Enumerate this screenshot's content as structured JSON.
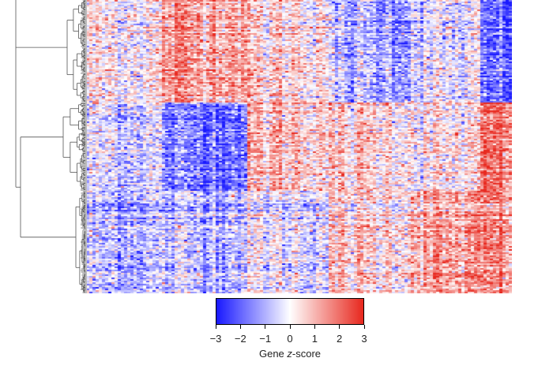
{
  "chart_data": {
    "type": "heatmap",
    "title": "",
    "xlabel": "",
    "ylabel": "",
    "colorbar": {
      "label_prefix": "Gene ",
      "label_italic": "z",
      "label_suffix": "-score",
      "min": -3,
      "max": 3,
      "ticks": [
        -3,
        -2,
        -1,
        0,
        1,
        2,
        3
      ],
      "tick_labels": [
        "−3",
        "−2",
        "−1",
        "0",
        "1",
        "2",
        "3"
      ],
      "colors": {
        "low": "#1a1aff",
        "mid": "#ffffff",
        "high": "#e8291f"
      }
    },
    "row_clusters": [
      {
        "name": "",
        "row_fraction": 0.35
      },
      {
        "name": "",
        "row_fraction": 0.3
      },
      {
        "name": "",
        "row_fraction": 0.35
      }
    ],
    "column_blocks": [
      {
        "width_fraction": 0.175,
        "mean_z": [
          0.2,
          -0.4,
          -0.9
        ]
      },
      {
        "width_fraction": 0.205,
        "mean_z": [
          1.4,
          -1.6,
          -0.8
        ]
      },
      {
        "width_fraction": 0.19,
        "mean_z": [
          0.5,
          0.9,
          -0.3
        ]
      },
      {
        "width_fraction": 0.19,
        "mean_z": [
          -1.0,
          0.6,
          0.5
        ]
      },
      {
        "width_fraction": 0.165,
        "mean_z": [
          -0.4,
          0.2,
          1.1
        ]
      },
      {
        "width_fraction": 0.065,
        "mean_z": [
          -2.0,
          1.9,
          1.5
        ]
      }
    ]
  }
}
